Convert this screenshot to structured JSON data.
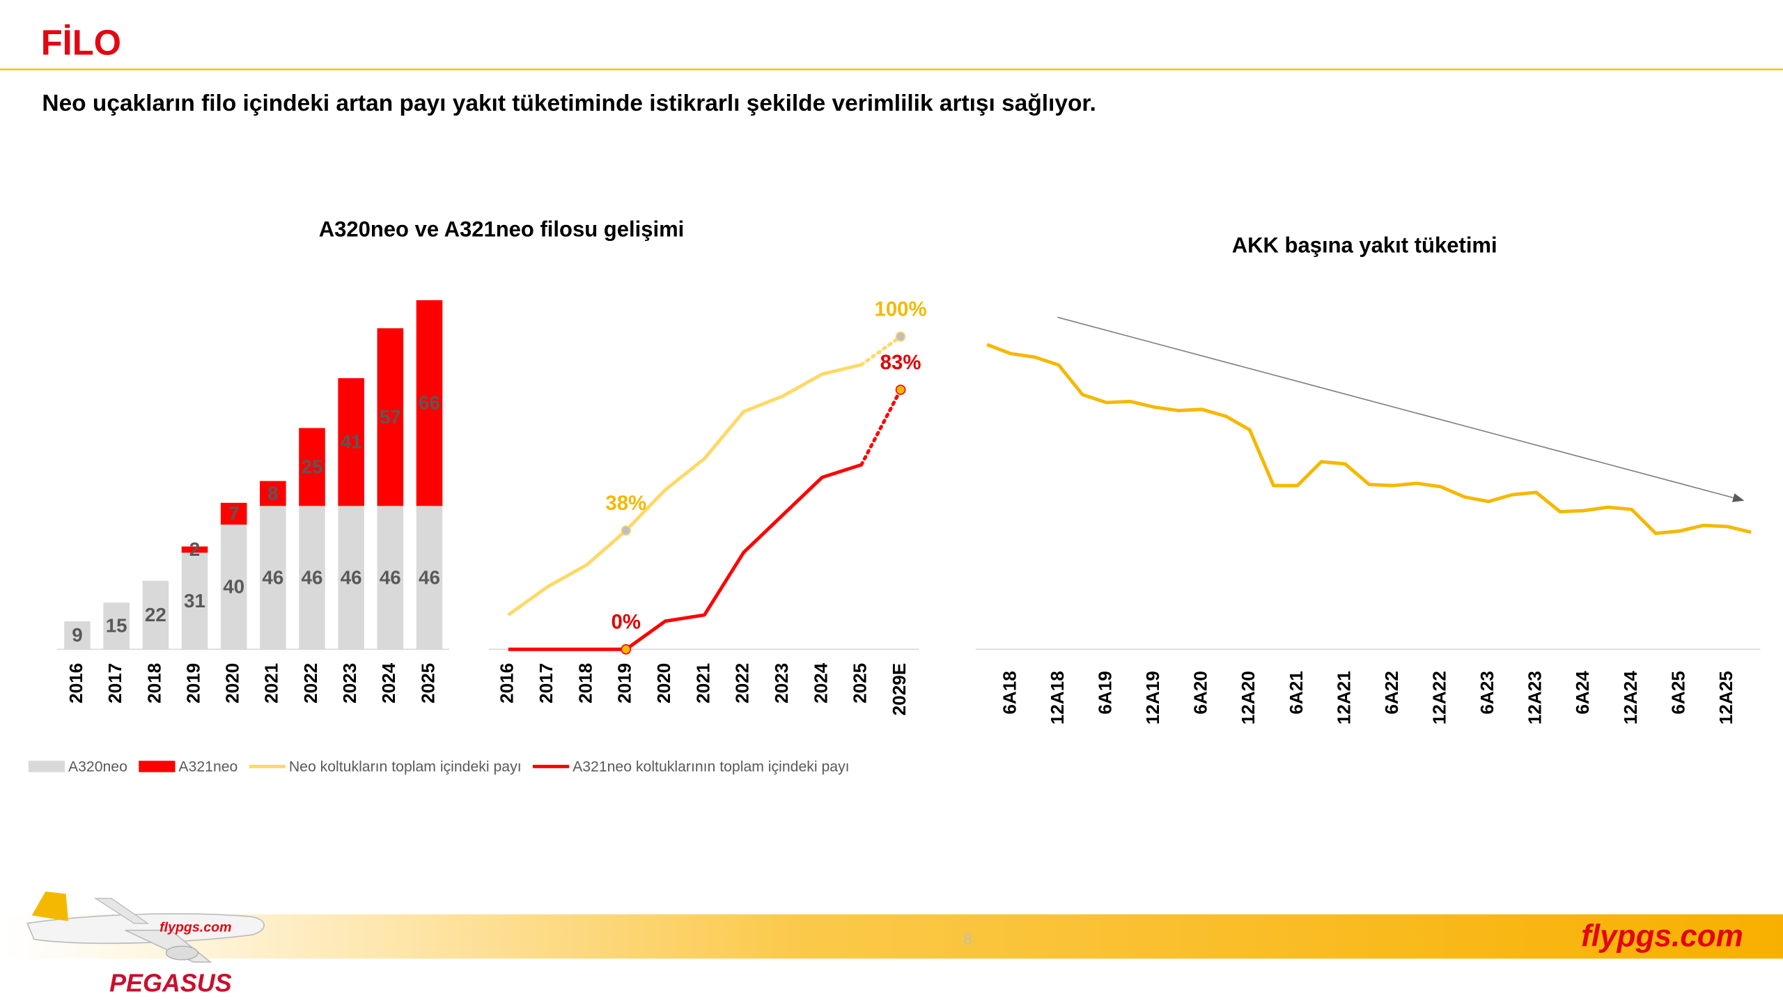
{
  "page": {
    "title": "FİLO",
    "subtitle": "Neo uçakların filo içindeki artan payı yakıt tüketiminde istikrarlı şekilde verimlilik artışı sağlıyor.",
    "page_number": "8",
    "brand": "flypgs.com",
    "logo": "PEGASUS",
    "plane_text": "flypgs.com"
  },
  "chart_data": [
    {
      "type": "bar",
      "stacked": true,
      "title": "A320neo ve A321neo filosu gelişimi",
      "categories": [
        "2016",
        "2017",
        "2018",
        "2019",
        "2020",
        "2021",
        "2022",
        "2023",
        "2024",
        "2025"
      ],
      "series": [
        {
          "name": "A320neo",
          "color": "#d9d9d9",
          "values": [
            9,
            15,
            22,
            31,
            40,
            46,
            46,
            46,
            46,
            46
          ]
        },
        {
          "name": "A321neo",
          "color": "#ff0000",
          "values": [
            null,
            null,
            null,
            2,
            7,
            8,
            25,
            41,
            57,
            66
          ]
        }
      ]
    },
    {
      "type": "line",
      "categories": [
        "2016",
        "2017",
        "2018",
        "2019",
        "2020",
        "2021",
        "2022",
        "2023",
        "2024",
        "2025",
        "2029E"
      ],
      "series": [
        {
          "name": "Neo koltukların toplam içindeki payı",
          "color": "#ffd966",
          "label_color": "#f5b800",
          "marker_color": "#bfbfbf",
          "values": [
            11,
            20,
            27,
            38,
            51,
            61,
            76,
            81,
            88,
            91,
            100
          ],
          "value_labels": [
            null,
            null,
            null,
            "38%",
            null,
            null,
            null,
            null,
            null,
            null,
            "100%"
          ]
        },
        {
          "name": "A321neo koltuklarının toplam içindeki payı",
          "color": "#ff0000",
          "label_color": "#e00000",
          "marker_color": "#f5b800",
          "values": [
            0,
            0,
            0,
            0,
            9,
            11,
            31,
            43,
            55,
            59,
            83
          ],
          "value_labels": [
            null,
            null,
            null,
            "0%",
            null,
            null,
            null,
            null,
            null,
            null,
            "83%"
          ]
        }
      ]
    },
    {
      "type": "line",
      "title": "AKK başına yakıt tüketimi",
      "categories": [
        null,
        "6A18",
        null,
        "12A18",
        null,
        "6A19",
        null,
        "12A19",
        null,
        "6A20",
        null,
        "12A20",
        null,
        "6A21",
        null,
        "12A21",
        null,
        "6A22",
        null,
        "12A22",
        null,
        "6A23",
        null,
        "12A23",
        null,
        "6A24",
        null,
        "12A24",
        null,
        "6A25",
        null,
        "12A25",
        null
      ],
      "series": [
        {
          "color": "#f5b800",
          "values": [
            268,
            260,
            257,
            250,
            224,
            217,
            218,
            213,
            210,
            211,
            205,
            193,
            144,
            144,
            165,
            163,
            145,
            144,
            146,
            143,
            134,
            130,
            136,
            138,
            121,
            122,
            125,
            123,
            102,
            104,
            109,
            108,
            103
          ]
        }
      ]
    }
  ]
}
